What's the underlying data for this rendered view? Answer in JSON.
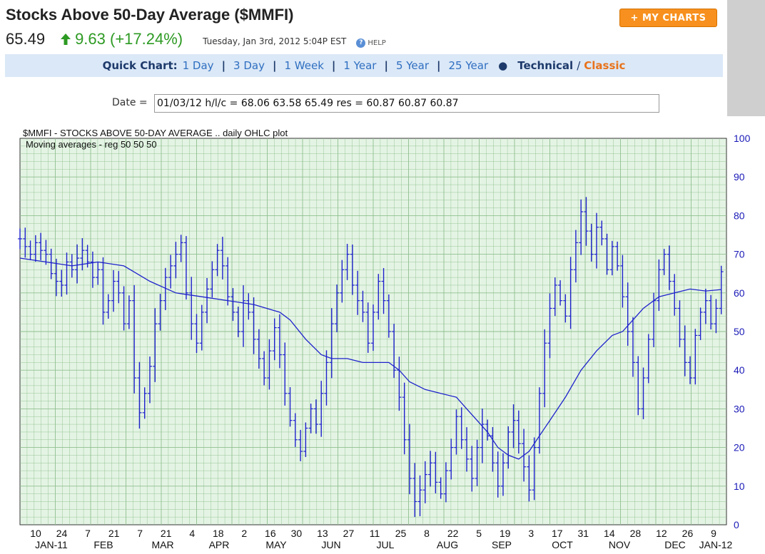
{
  "header": {
    "title": "Stocks Above 50-Day Average ($MMFI)",
    "price": "65.49",
    "change": "9.63 (+17.24%)",
    "datetime": "Tuesday, Jan 3rd, 2012 5:04P EST",
    "help_label": "HELP",
    "my_charts_label": "+ MY CHARTS"
  },
  "quick_chart": {
    "label": "Quick Chart:",
    "links": [
      "1 Day",
      "3 Day",
      "1 Week",
      "1 Year",
      "5 Year",
      "25 Year"
    ],
    "technical": "Technical",
    "separator": "/",
    "classic": "Classic"
  },
  "date_field": {
    "label": "Date =",
    "value": "01/03/12 h/l/c = 68.06 63.58 65.49 res = 60.87 60.87 60.87"
  },
  "colors": {
    "up_green": "#2d9a23",
    "accent_orange": "#f7901e",
    "plot_bg": "#e4f4e4",
    "grid": "#8fbf8f",
    "series_blue": "#1f22cc",
    "axis_blue": "#1a1ab8"
  },
  "chart_data": {
    "type": "line",
    "title": "$MMFI - STOCKS ABOVE 50-DAY AVERAGE .. daily OHLC plot",
    "subtitle": "Moving averages - reg 50 50 50",
    "ylim": [
      0,
      100
    ],
    "y_ticks": [
      0,
      10,
      20,
      30,
      40,
      50,
      60,
      70,
      80,
      90,
      100
    ],
    "x_day_ticks": [
      "10",
      "24",
      "7",
      "21",
      "7",
      "21",
      "4",
      "18",
      "2",
      "16",
      "30",
      "13",
      "27",
      "11",
      "25",
      "8",
      "22",
      "5",
      "19",
      "3",
      "17",
      "31",
      "14",
      "28",
      "12",
      "26",
      "9"
    ],
    "x_month_labels": [
      "JAN-11",
      "FEB",
      "MAR",
      "APR",
      "MAY",
      "JUN",
      "JUL",
      "AUG",
      "SEP",
      "OCT",
      "NOV",
      "DEC",
      "JAN-12"
    ],
    "series": [
      {
        "kind": "ohlc_close",
        "points": [
          [
            0,
            74
          ],
          [
            2,
            72
          ],
          [
            4,
            70
          ],
          [
            6,
            73
          ],
          [
            8,
            71
          ],
          [
            10,
            70
          ],
          [
            12,
            65
          ],
          [
            14,
            63
          ],
          [
            16,
            62
          ],
          [
            18,
            68
          ],
          [
            20,
            66
          ],
          [
            22,
            69
          ],
          [
            24,
            71
          ],
          [
            26,
            68
          ],
          [
            28,
            64
          ],
          [
            30,
            66
          ],
          [
            32,
            55
          ],
          [
            34,
            58
          ],
          [
            36,
            63
          ],
          [
            38,
            60
          ],
          [
            40,
            52
          ],
          [
            42,
            58
          ],
          [
            44,
            38
          ],
          [
            46,
            29
          ],
          [
            48,
            34
          ],
          [
            50,
            41
          ],
          [
            52,
            52
          ],
          [
            54,
            58
          ],
          [
            56,
            64
          ],
          [
            58,
            67
          ],
          [
            60,
            70
          ],
          [
            62,
            73
          ],
          [
            64,
            60
          ],
          [
            66,
            52
          ],
          [
            68,
            47
          ],
          [
            70,
            55
          ],
          [
            72,
            61
          ],
          [
            74,
            66
          ],
          [
            76,
            71
          ],
          [
            78,
            67
          ],
          [
            80,
            59
          ],
          [
            82,
            55
          ],
          [
            84,
            50
          ],
          [
            86,
            58
          ],
          [
            88,
            55
          ],
          [
            90,
            48
          ],
          [
            92,
            43
          ],
          [
            94,
            38
          ],
          [
            96,
            45
          ],
          [
            98,
            51
          ],
          [
            100,
            44
          ],
          [
            102,
            34
          ],
          [
            104,
            27
          ],
          [
            106,
            22
          ],
          [
            108,
            19
          ],
          [
            110,
            25
          ],
          [
            112,
            30
          ],
          [
            114,
            26
          ],
          [
            116,
            34
          ],
          [
            118,
            42
          ],
          [
            120,
            52
          ],
          [
            122,
            60
          ],
          [
            124,
            66
          ],
          [
            126,
            70
          ],
          [
            128,
            62
          ],
          [
            130,
            58
          ],
          [
            132,
            55
          ],
          [
            134,
            47
          ],
          [
            136,
            55
          ],
          [
            138,
            63
          ],
          [
            140,
            58
          ],
          [
            142,
            50
          ],
          [
            144,
            40
          ],
          [
            146,
            33
          ],
          [
            148,
            22
          ],
          [
            150,
            12
          ],
          [
            152,
            6
          ],
          [
            154,
            9
          ],
          [
            156,
            13
          ],
          [
            158,
            16
          ],
          [
            160,
            11
          ],
          [
            162,
            8
          ],
          [
            164,
            14
          ],
          [
            166,
            20
          ],
          [
            168,
            28
          ],
          [
            170,
            22
          ],
          [
            172,
            17
          ],
          [
            174,
            12
          ],
          [
            176,
            20
          ],
          [
            178,
            26
          ],
          [
            180,
            23
          ],
          [
            182,
            16
          ],
          [
            184,
            10
          ],
          [
            186,
            16
          ],
          [
            188,
            24
          ],
          [
            190,
            27
          ],
          [
            192,
            21
          ],
          [
            194,
            15
          ],
          [
            196,
            9
          ],
          [
            198,
            20
          ],
          [
            200,
            34
          ],
          [
            202,
            47
          ],
          [
            204,
            56
          ],
          [
            206,
            62
          ],
          [
            208,
            58
          ],
          [
            210,
            54
          ],
          [
            212,
            66
          ],
          [
            214,
            73
          ],
          [
            216,
            81
          ],
          [
            218,
            76
          ],
          [
            220,
            70
          ],
          [
            222,
            77
          ],
          [
            224,
            74
          ],
          [
            226,
            66
          ],
          [
            228,
            72
          ],
          [
            230,
            67
          ],
          [
            232,
            59
          ],
          [
            234,
            50
          ],
          [
            236,
            42
          ],
          [
            238,
            30
          ],
          [
            240,
            38
          ],
          [
            242,
            48
          ],
          [
            244,
            58
          ],
          [
            246,
            66
          ],
          [
            248,
            70
          ],
          [
            250,
            63
          ],
          [
            252,
            56
          ],
          [
            254,
            48
          ],
          [
            256,
            42
          ],
          [
            258,
            38
          ],
          [
            260,
            49
          ],
          [
            262,
            55
          ],
          [
            264,
            58
          ],
          [
            266,
            52
          ],
          [
            268,
            56
          ],
          [
            270,
            65.49
          ]
        ]
      },
      {
        "kind": "moving_average",
        "name": "50",
        "points": [
          [
            0,
            69
          ],
          [
            10,
            68
          ],
          [
            20,
            67
          ],
          [
            30,
            68
          ],
          [
            40,
            67
          ],
          [
            50,
            63
          ],
          [
            60,
            60
          ],
          [
            70,
            59
          ],
          [
            80,
            58
          ],
          [
            90,
            57
          ],
          [
            100,
            55
          ],
          [
            104,
            53
          ],
          [
            110,
            48
          ],
          [
            116,
            44
          ],
          [
            120,
            43
          ],
          [
            126,
            43
          ],
          [
            132,
            42
          ],
          [
            138,
            42
          ],
          [
            142,
            42
          ],
          [
            146,
            40
          ],
          [
            150,
            37
          ],
          [
            156,
            35
          ],
          [
            162,
            34
          ],
          [
            168,
            33
          ],
          [
            172,
            30
          ],
          [
            176,
            27
          ],
          [
            180,
            24
          ],
          [
            184,
            20
          ],
          [
            188,
            18
          ],
          [
            192,
            17
          ],
          [
            196,
            19
          ],
          [
            200,
            23
          ],
          [
            204,
            27
          ],
          [
            210,
            33
          ],
          [
            216,
            40
          ],
          [
            222,
            45
          ],
          [
            228,
            49
          ],
          [
            232,
            50
          ],
          [
            236,
            53
          ],
          [
            240,
            56
          ],
          [
            246,
            59
          ],
          [
            252,
            60
          ],
          [
            258,
            61
          ],
          [
            264,
            60.5
          ],
          [
            270,
            60.87
          ]
        ]
      }
    ],
    "last_close": 65.49,
    "last_ma": 60.87
  }
}
